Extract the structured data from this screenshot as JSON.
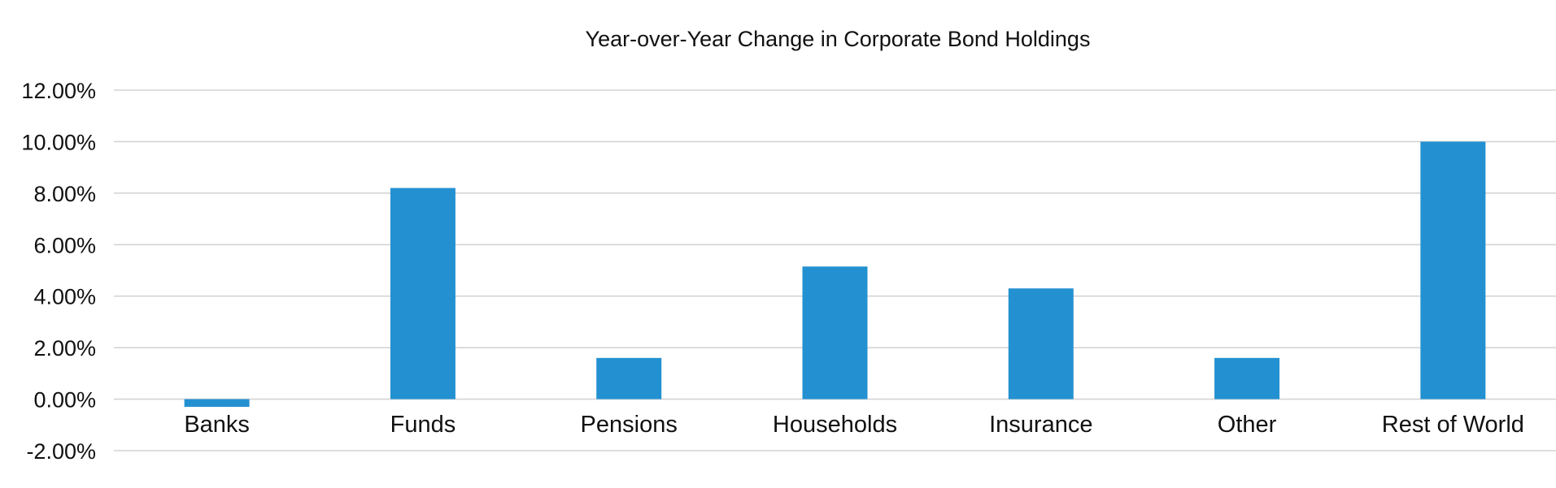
{
  "chart_data": {
    "type": "bar",
    "title": "Year-over-Year Change in Corporate Bond Holdings",
    "xlabel": "",
    "ylabel": "",
    "categories": [
      "Banks",
      "Funds",
      "Pensions",
      "Households",
      "Insurance",
      "Other",
      "Rest of World"
    ],
    "values": [
      -0.3,
      8.2,
      1.6,
      5.15,
      4.3,
      1.6,
      10.0
    ],
    "ylim": [
      -2,
      12
    ],
    "yticks": [
      12,
      10,
      8,
      6,
      4,
      2,
      0,
      -2
    ],
    "ytick_labels": [
      "12.00%",
      "10.00%",
      "8.00%",
      "6.00%",
      "4.00%",
      "2.00%",
      "0.00%",
      "-2.00%"
    ],
    "grid": true,
    "legend": "none",
    "bar_color": "#2391d1",
    "grid_color": "#d4d4d4",
    "text_color": "#111111"
  }
}
